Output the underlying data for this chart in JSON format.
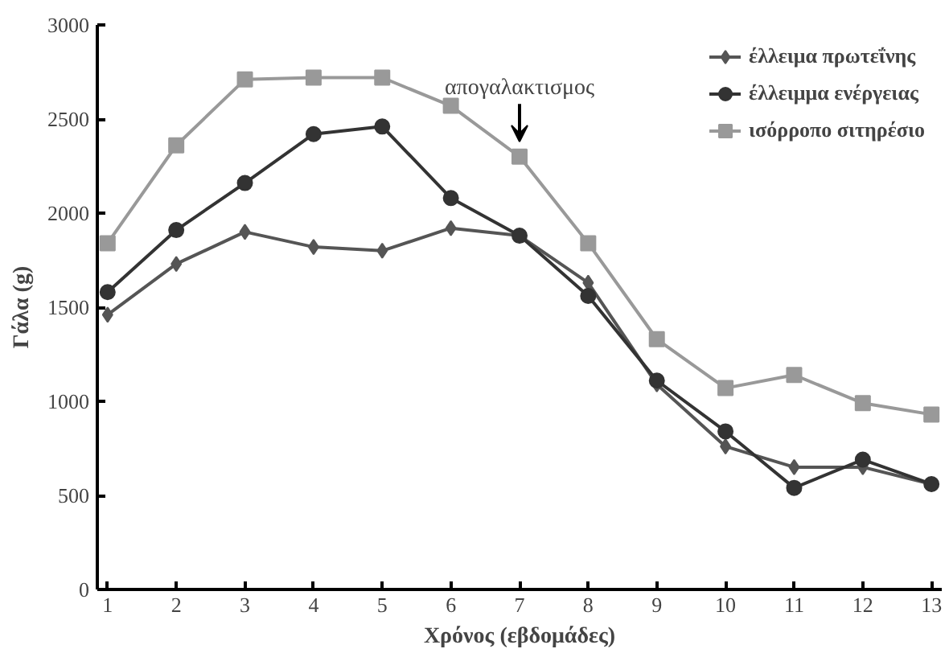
{
  "chart_data": {
    "type": "line",
    "xlabel": "Χρόνος (εβδομάδες)",
    "ylabel": "Γάλα (g)",
    "x": [
      1,
      2,
      3,
      4,
      5,
      6,
      7,
      8,
      9,
      10,
      11,
      12,
      13
    ],
    "xlim": [
      0.85,
      13.15
    ],
    "xticks": [
      1,
      2,
      3,
      4,
      5,
      6,
      7,
      8,
      9,
      10,
      11,
      12,
      13
    ],
    "ylim": [
      0,
      3000
    ],
    "yticks": [
      0,
      500,
      1000,
      1500,
      2000,
      2500,
      3000
    ],
    "grid": false,
    "legend": "top right",
    "annotations": [
      {
        "text": "απογαλακτισμος",
        "x": 7,
        "y": 2300
      }
    ],
    "series": [
      {
        "name": "έλλειμα πρωτεΐνης",
        "color": "#555555",
        "marker": "diamond",
        "values": [
          1460,
          1730,
          1900,
          1820,
          1800,
          1920,
          1880,
          1630,
          1090,
          760,
          650,
          650,
          560
        ]
      },
      {
        "name": "έλλειμμα ενέργειας",
        "color": "#333333",
        "marker": "circle",
        "values": [
          1580,
          1910,
          2160,
          2420,
          2460,
          2080,
          1880,
          1560,
          1110,
          840,
          540,
          690,
          560
        ]
      },
      {
        "name": "ισόρροπο σιτηρέσιο",
        "color": "#999999",
        "marker": "square",
        "values": [
          1840,
          2360,
          2710,
          2720,
          2720,
          2570,
          2300,
          1840,
          1330,
          1070,
          1140,
          990,
          930
        ]
      }
    ]
  }
}
